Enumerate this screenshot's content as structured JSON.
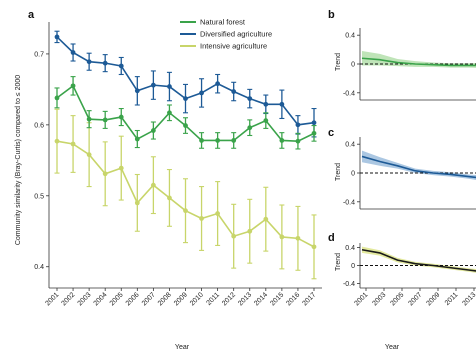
{
  "chart_data": [
    {
      "panel": "a",
      "type": "line",
      "xlabel": "Year",
      "ylabel": "Community similarity (Bray-Curtis) compared to ≤ 2000",
      "categories": [
        "2001",
        "2002",
        "2003",
        "2004",
        "2005",
        "2006",
        "2007",
        "2008",
        "2009",
        "2010",
        "2011",
        "2012",
        "2013",
        "2014",
        "2015",
        "2016",
        "2017"
      ],
      "ylim": [
        0.37,
        0.745
      ],
      "yticks": [
        "0.4",
        "0.5",
        "0.6",
        "0.7"
      ],
      "ytick_values": [
        0.4,
        0.5,
        0.6,
        0.7
      ],
      "legend_position": "top-right",
      "series": [
        {
          "name": "Natural forest",
          "color": "#3aa34a",
          "values": [
            0.638,
            0.655,
            0.608,
            0.607,
            0.611,
            0.58,
            0.592,
            0.617,
            0.599,
            0.578,
            0.578,
            0.578,
            0.596,
            0.606,
            0.578,
            0.577,
            0.588
          ],
          "error": [
            0.014,
            0.013,
            0.012,
            0.012,
            0.012,
            0.012,
            0.012,
            0.011,
            0.011,
            0.011,
            0.011,
            0.011,
            0.011,
            0.011,
            0.011,
            0.011,
            0.011
          ]
        },
        {
          "name": "Diversified agriculture",
          "color": "#1d5a96",
          "values": [
            0.724,
            0.702,
            0.689,
            0.687,
            0.683,
            0.648,
            0.656,
            0.654,
            0.637,
            0.645,
            0.658,
            0.647,
            0.637,
            0.629,
            0.629,
            0.6,
            0.603
          ],
          "error": [
            0.008,
            0.012,
            0.012,
            0.012,
            0.012,
            0.02,
            0.02,
            0.02,
            0.02,
            0.02,
            0.013,
            0.013,
            0.013,
            0.013,
            0.02,
            0.013,
            0.02
          ]
        },
        {
          "name": "Intensive agriculture",
          "color": "#c8d56a",
          "values": [
            0.577,
            0.573,
            0.558,
            0.531,
            0.539,
            0.49,
            0.515,
            0.497,
            0.479,
            0.468,
            0.475,
            0.443,
            0.45,
            0.467,
            0.442,
            0.44,
            0.428
          ],
          "error": [
            0.045,
            0.04,
            0.045,
            0.045,
            0.045,
            0.04,
            0.04,
            0.04,
            0.045,
            0.045,
            0.045,
            0.045,
            0.045,
            0.045,
            0.045,
            0.045,
            0.045
          ]
        }
      ]
    },
    {
      "panel": "b",
      "type": "area",
      "ylabel": "Trend",
      "ylim": [
        -0.5,
        0.5
      ],
      "yticks": [
        "0.4",
        "0",
        "-0.4"
      ],
      "ytick_values": [
        0.4,
        0,
        -0.4
      ],
      "color": "#3aa34a",
      "band_color": "#aadba0",
      "x": [
        2001,
        2002,
        2003,
        2004,
        2005,
        2006,
        2007,
        2008,
        2009,
        2010
      ],
      "values": [
        0.08,
        0.06,
        0.02,
        0.0,
        -0.01,
        -0.02,
        -0.02,
        -0.02,
        -0.02,
        -0.02
      ],
      "band": [
        0.1,
        0.08,
        0.05,
        0.04,
        0.03,
        0.03,
        0.03,
        0.04,
        0.04,
        0.05
      ]
    },
    {
      "panel": "c",
      "type": "area",
      "ylabel": "Trend",
      "ylim": [
        -0.5,
        0.5
      ],
      "yticks": [
        "0.4",
        "0",
        "-0.4"
      ],
      "ytick_values": [
        0.4,
        0,
        -0.4
      ],
      "color": "#1d5a96",
      "band_color": "#8fb4d8",
      "x": [
        2001,
        2002,
        2003,
        2004,
        2005,
        2006,
        2007,
        2008,
        2009,
        2010
      ],
      "values": [
        0.23,
        0.16,
        0.1,
        0.03,
        0.0,
        -0.02,
        -0.05,
        -0.08,
        -0.13,
        -0.18
      ],
      "band": [
        0.08,
        0.06,
        0.04,
        0.03,
        0.03,
        0.03,
        0.03,
        0.04,
        0.05,
        0.06
      ]
    },
    {
      "panel": "d",
      "type": "area",
      "ylabel": "Trend",
      "xlabel": "Year",
      "ylim": [
        -0.5,
        0.5
      ],
      "yticks": [
        "0.4",
        "0",
        "-0.4"
      ],
      "ytick_values": [
        0.4,
        0,
        -0.4
      ],
      "color": "#1a1a1a",
      "band_color": "#d9e27d",
      "categories": [
        "2001",
        "2003",
        "2005",
        "2007",
        "2009",
        "2011",
        "2013"
      ],
      "x": [
        2001,
        2002,
        2003,
        2004,
        2005,
        2006,
        2007,
        2008,
        2009,
        2010
      ],
      "values": [
        0.35,
        0.28,
        0.12,
        0.04,
        0.0,
        -0.05,
        -0.1,
        -0.15,
        -0.2,
        -0.25
      ],
      "band": [
        0.07,
        0.06,
        0.05,
        0.04,
        0.04,
        0.04,
        0.04,
        0.05,
        0.05,
        0.06
      ]
    }
  ]
}
